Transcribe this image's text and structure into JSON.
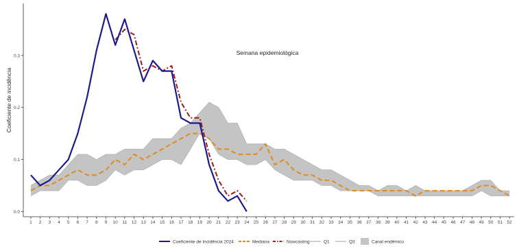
{
  "chart_data": {
    "type": "line",
    "xlabel": "Semana epidemiológica",
    "ylabel": "Coeficiente de incidência",
    "xlim": [
      0.2,
      52.5
    ],
    "ylim": [
      -0.01,
      0.4
    ],
    "x_ticks": [
      1,
      2,
      3,
      4,
      5,
      6,
      7,
      8,
      9,
      10,
      11,
      12,
      13,
      14,
      15,
      16,
      17,
      18,
      19,
      20,
      21,
      22,
      23,
      24,
      25,
      26,
      27,
      28,
      29,
      30,
      31,
      32,
      33,
      34,
      35,
      36,
      37,
      38,
      39,
      40,
      41,
      42,
      43,
      44,
      45,
      46,
      47,
      48,
      49,
      50,
      51,
      52
    ],
    "y_ticks": [
      0.0,
      0.1,
      0.2,
      0.3
    ],
    "y_tick_labels": [
      "0.0",
      "0.1",
      "0.2",
      "0.3"
    ],
    "grid": false,
    "legend_position": "bottom",
    "colors": {
      "incidencia": "#1a1a8c",
      "mediana": "#e08a1e",
      "nowcasting": "#a01818",
      "q1": "#b3b3b3",
      "q3": "#b3b3b3",
      "canal": "#c4c4c4"
    },
    "legend": [
      {
        "key": "incidencia",
        "label": "Coeficiente de Incidência 2024"
      },
      {
        "key": "mediana",
        "label": "Mediana"
      },
      {
        "key": "nowcasting",
        "label": "Nowcasting"
      },
      {
        "key": "q1",
        "label": "Q1"
      },
      {
        "key": "q3",
        "label": "Q3"
      },
      {
        "key": "canal",
        "label": "Canal endêmico"
      }
    ],
    "band": {
      "name": "Canal endêmico",
      "x": [
        1,
        2,
        3,
        4,
        5,
        6,
        7,
        8,
        9,
        10,
        11,
        12,
        13,
        14,
        15,
        16,
        17,
        18,
        19,
        20,
        21,
        22,
        23,
        24,
        25,
        26,
        27,
        28,
        29,
        30,
        31,
        32,
        33,
        34,
        35,
        36,
        37,
        38,
        39,
        40,
        41,
        42,
        43,
        44,
        45,
        46,
        47,
        48,
        49,
        50,
        51,
        52
      ],
      "q1": [
        0.03,
        0.04,
        0.04,
        0.04,
        0.06,
        0.06,
        0.05,
        0.05,
        0.06,
        0.08,
        0.07,
        0.08,
        0.08,
        0.09,
        0.1,
        0.1,
        0.09,
        0.12,
        0.15,
        0.14,
        0.11,
        0.1,
        0.1,
        0.09,
        0.09,
        0.1,
        0.08,
        0.07,
        0.06,
        0.06,
        0.06,
        0.05,
        0.05,
        0.04,
        0.04,
        0.04,
        0.04,
        0.03,
        0.03,
        0.03,
        0.03,
        0.03,
        0.03,
        0.03,
        0.03,
        0.03,
        0.03,
        0.03,
        0.04,
        0.03,
        0.03,
        0.03
      ],
      "q3": [
        0.05,
        0.06,
        0.07,
        0.07,
        0.09,
        0.11,
        0.11,
        0.1,
        0.11,
        0.11,
        0.12,
        0.12,
        0.12,
        0.14,
        0.14,
        0.14,
        0.16,
        0.17,
        0.19,
        0.21,
        0.2,
        0.17,
        0.17,
        0.13,
        0.13,
        0.13,
        0.12,
        0.12,
        0.11,
        0.1,
        0.09,
        0.08,
        0.08,
        0.07,
        0.06,
        0.05,
        0.05,
        0.04,
        0.05,
        0.05,
        0.04,
        0.05,
        0.04,
        0.04,
        0.04,
        0.04,
        0.04,
        0.05,
        0.06,
        0.06,
        0.04,
        0.04
      ]
    },
    "series": [
      {
        "key": "incidencia",
        "name": "Coeficiente de Incidência 2024",
        "x": [
          1,
          2,
          3,
          4,
          5,
          6,
          7,
          8,
          9,
          10,
          11,
          12,
          13,
          14,
          15,
          16,
          17,
          18,
          19,
          20,
          21,
          22,
          23,
          24
        ],
        "values": [
          0.07,
          0.05,
          0.06,
          0.08,
          0.1,
          0.15,
          0.22,
          0.31,
          0.38,
          0.32,
          0.37,
          0.31,
          0.25,
          0.29,
          0.27,
          0.27,
          0.18,
          0.17,
          0.17,
          0.09,
          0.04,
          0.02,
          0.03,
          0.0
        ]
      },
      {
        "key": "mediana",
        "name": "Mediana",
        "x": [
          1,
          2,
          3,
          4,
          5,
          6,
          7,
          8,
          9,
          10,
          11,
          12,
          13,
          14,
          15,
          16,
          17,
          18,
          19,
          20,
          21,
          22,
          23,
          24,
          25,
          26,
          27,
          28,
          29,
          30,
          31,
          32,
          33,
          34,
          35,
          36,
          37,
          38,
          39,
          40,
          41,
          42,
          43,
          44,
          45,
          46,
          47,
          48,
          49,
          50,
          51,
          52
        ],
        "values": [
          0.04,
          0.05,
          0.05,
          0.06,
          0.07,
          0.08,
          0.07,
          0.07,
          0.08,
          0.1,
          0.09,
          0.11,
          0.1,
          0.11,
          0.12,
          0.13,
          0.14,
          0.15,
          0.15,
          0.14,
          0.12,
          0.12,
          0.11,
          0.11,
          0.11,
          0.13,
          0.09,
          0.1,
          0.08,
          0.07,
          0.07,
          0.06,
          0.06,
          0.05,
          0.04,
          0.04,
          0.04,
          0.04,
          0.04,
          0.04,
          0.04,
          0.03,
          0.04,
          0.04,
          0.04,
          0.04,
          0.04,
          0.04,
          0.05,
          0.05,
          0.04,
          0.03
        ]
      },
      {
        "key": "nowcasting",
        "name": "Nowcasting",
        "x": [
          10,
          11,
          12,
          13,
          14,
          15,
          16,
          17,
          18,
          19,
          20,
          21,
          22,
          23,
          24
        ],
        "values": [
          0.33,
          0.35,
          0.34,
          0.27,
          0.28,
          0.27,
          0.28,
          0.21,
          0.18,
          0.18,
          0.11,
          0.06,
          0.03,
          0.04,
          0.02
        ]
      }
    ]
  }
}
